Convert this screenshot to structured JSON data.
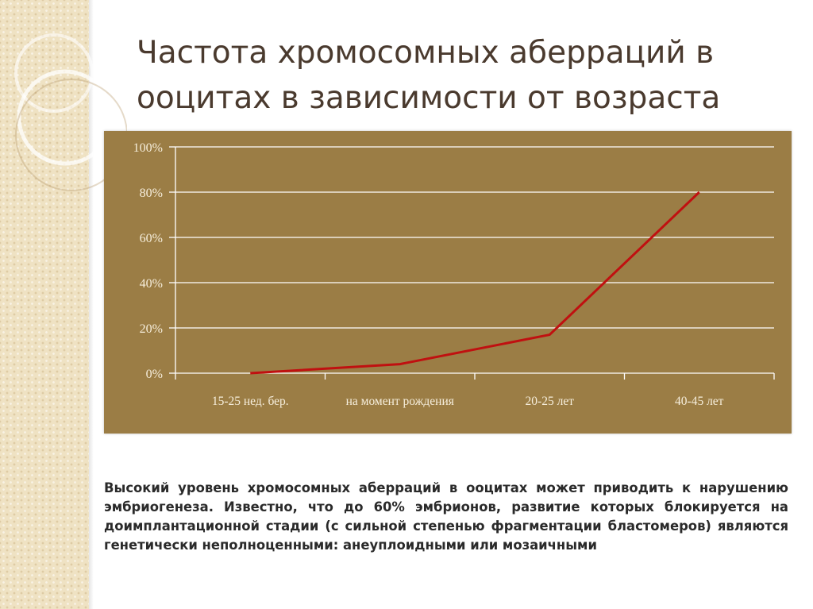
{
  "slide": {
    "title_line1": "Частота хромосомных аберраций в",
    "title_line2": "ооцитах в зависимости от возраста",
    "body_text": "Высокий уровень хромосомных аберраций в ооцитах может приводить к нарушению эмбриогенеза. Известно, что до 60% эмбрионов, развитие которых блокируется на доимплантационной стадии (с сильной степенью фрагментации бластомеров) являются генетически неполноценными: анеуплоидными или мозаичными"
  },
  "colors": {
    "plot_background": "#9b7d45",
    "line": "#c01010",
    "gridline": "#ffffff",
    "text": "#4a3a2e"
  },
  "chart_data": {
    "type": "line",
    "title": "",
    "xlabel": "",
    "ylabel": "",
    "categories": [
      "15-25 нед. бер.",
      "на момент рождения",
      "20-25 лет",
      "40-45 лет"
    ],
    "series": [
      {
        "values": [
          0,
          4,
          17,
          80
        ]
      }
    ],
    "ylim": [
      0,
      100
    ],
    "y_ticks": [
      "0%",
      "20%",
      "40%",
      "60%",
      "80%",
      "100%"
    ],
    "grid": true,
    "legend": false
  }
}
